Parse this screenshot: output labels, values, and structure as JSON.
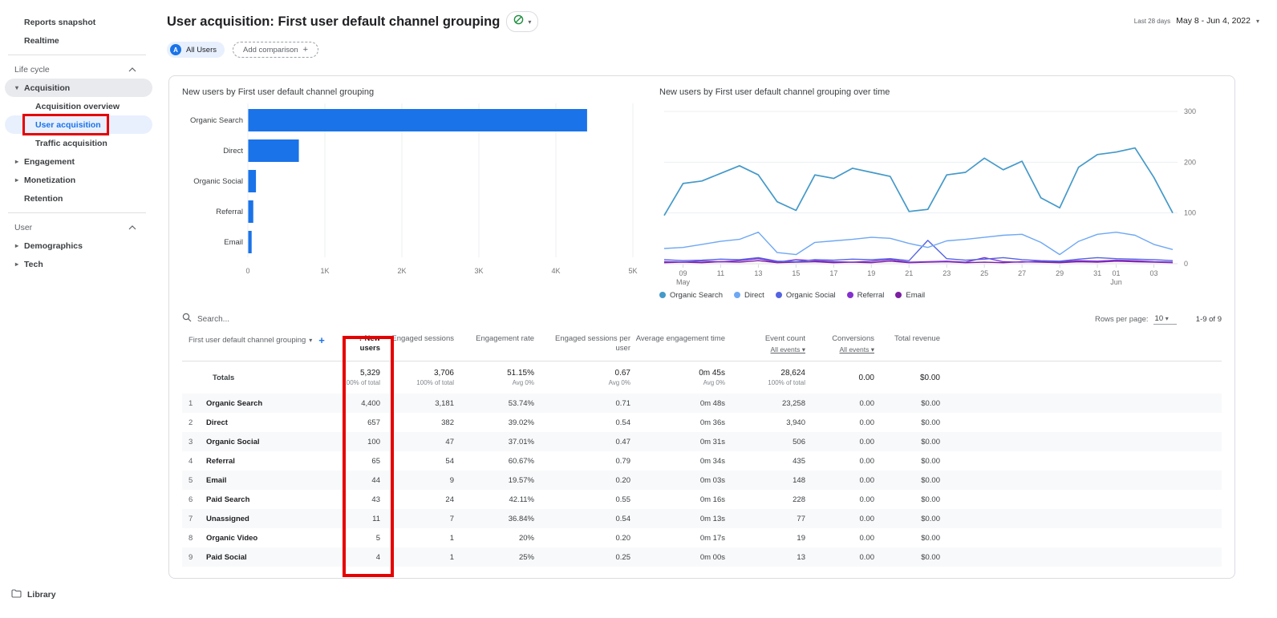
{
  "colors": {
    "accent_blue": "#1a73e8",
    "annotation_red": "#e60000",
    "selected_nav_bg": "#e8f0fe",
    "bar_color": "#1a73e8"
  },
  "sidebar": {
    "items": [
      {
        "label": "Reports snapshot",
        "type": "item"
      },
      {
        "label": "Realtime",
        "type": "item"
      },
      {
        "divider": true
      },
      {
        "label": "Life cycle",
        "type": "section",
        "chevron": "up"
      },
      {
        "label": "Acquisition",
        "type": "parent",
        "caret": "down",
        "active": true
      },
      {
        "label": "Acquisition overview",
        "type": "sub"
      },
      {
        "label": "User acquisition",
        "type": "sub",
        "selected": true
      },
      {
        "label": "Traffic acquisition",
        "type": "sub"
      },
      {
        "label": "Engagement",
        "type": "parent",
        "caret": "right"
      },
      {
        "label": "Monetization",
        "type": "parent",
        "caret": "right"
      },
      {
        "label": "Retention",
        "type": "parent"
      },
      {
        "divider": true
      },
      {
        "label": "User",
        "type": "section",
        "chevron": "up"
      },
      {
        "label": "Demographics",
        "type": "parent",
        "caret": "right"
      },
      {
        "label": "Tech",
        "type": "parent",
        "caret": "right"
      }
    ],
    "library_label": "Library"
  },
  "header": {
    "title": "User acquisition: First user default channel grouping",
    "date_range_type": "Last 28 days",
    "date_range": "May 8 - Jun 4, 2022"
  },
  "chips": {
    "all_users_label": "All Users",
    "all_users_avatar": "A",
    "add_comparison_label": "Add comparison"
  },
  "chart_data": [
    {
      "type": "bar",
      "orientation": "horizontal",
      "title": "New users by First user default channel grouping",
      "categories": [
        "Organic Search",
        "Direct",
        "Organic Social",
        "Referral",
        "Email"
      ],
      "values": [
        4400,
        657,
        100,
        65,
        44
      ],
      "xlim": [
        0,
        5000
      ],
      "xticks": [
        {
          "v": 0,
          "label": "0"
        },
        {
          "v": 1000,
          "label": "1K"
        },
        {
          "v": 2000,
          "label": "2K"
        },
        {
          "v": 3000,
          "label": "3K"
        },
        {
          "v": 4000,
          "label": "4K"
        },
        {
          "v": 5000,
          "label": "5K"
        }
      ],
      "bar_color": "#1a73e8",
      "grid": true,
      "xlabel": "",
      "ylabel": ""
    },
    {
      "type": "line",
      "title": "New users by First user default channel grouping over time",
      "x": [
        "May 8",
        "May 9",
        "May 10",
        "May 11",
        "May 12",
        "May 13",
        "May 14",
        "May 15",
        "May 16",
        "May 17",
        "May 18",
        "May 19",
        "May 20",
        "May 21",
        "May 22",
        "May 23",
        "May 24",
        "May 25",
        "May 26",
        "May 27",
        "May 28",
        "May 29",
        "May 30",
        "May 31",
        "Jun 1",
        "Jun 2",
        "Jun 3",
        "Jun 4"
      ],
      "xticks": [
        {
          "i": 1,
          "label": "09",
          "sub": "May"
        },
        {
          "i": 3,
          "label": "11"
        },
        {
          "i": 5,
          "label": "13"
        },
        {
          "i": 7,
          "label": "15"
        },
        {
          "i": 9,
          "label": "17"
        },
        {
          "i": 11,
          "label": "19"
        },
        {
          "i": 13,
          "label": "21"
        },
        {
          "i": 15,
          "label": "23"
        },
        {
          "i": 17,
          "label": "25"
        },
        {
          "i": 19,
          "label": "27"
        },
        {
          "i": 21,
          "label": "29"
        },
        {
          "i": 23,
          "label": "31"
        },
        {
          "i": 24,
          "label": "01",
          "sub": "Jun"
        },
        {
          "i": 26,
          "label": "03"
        }
      ],
      "ylim": [
        0,
        300
      ],
      "yticks": [
        0,
        100,
        200,
        300
      ],
      "grid": true,
      "legend_position": "bottom",
      "series": [
        {
          "name": "Organic Search",
          "color": "#4499c9",
          "values": [
            95,
            158,
            163,
            178,
            193,
            175,
            122,
            105,
            175,
            168,
            188,
            180,
            172,
            103,
            107,
            175,
            180,
            208,
            185,
            202,
            130,
            110,
            190,
            215,
            220,
            228,
            170,
            100
          ]
        },
        {
          "name": "Direct",
          "color": "#6ea8f4",
          "values": [
            30,
            32,
            38,
            44,
            48,
            62,
            22,
            18,
            42,
            45,
            48,
            52,
            50,
            40,
            32,
            45,
            48,
            52,
            56,
            58,
            42,
            18,
            44,
            58,
            62,
            56,
            38,
            28
          ]
        },
        {
          "name": "Organic Social",
          "color": "#5363e2",
          "values": [
            8,
            6,
            7,
            9,
            8,
            12,
            5,
            4,
            8,
            7,
            9,
            8,
            10,
            6,
            46,
            10,
            7,
            9,
            12,
            8,
            6,
            5,
            9,
            12,
            10,
            9,
            8,
            6
          ]
        },
        {
          "name": "Referral",
          "color": "#8430ce",
          "values": [
            4,
            3,
            5,
            4,
            6,
            10,
            3,
            8,
            6,
            4,
            3,
            5,
            8,
            3,
            4,
            5,
            3,
            12,
            4,
            3,
            5,
            4,
            6,
            5,
            7,
            6,
            4,
            3
          ]
        },
        {
          "name": "Email",
          "color": "#7c1fa2",
          "values": [
            2,
            3,
            2,
            4,
            3,
            6,
            2,
            3,
            4,
            2,
            3,
            2,
            5,
            2,
            3,
            4,
            2,
            3,
            2,
            4,
            3,
            2,
            4,
            3,
            5,
            4,
            3,
            2
          ]
        }
      ]
    }
  ],
  "table": {
    "search_placeholder": "Search...",
    "rows_per_page_label": "Rows per page:",
    "rows_per_page_value": "10",
    "range_label": "1-9 of 9",
    "sort_indicator": "↓",
    "columns": [
      {
        "label": "First user default channel grouping",
        "dimension": true
      },
      {
        "label": "New users",
        "sorted": true
      },
      {
        "label": "Engaged sessions"
      },
      {
        "label": "Engagement rate"
      },
      {
        "label": "Engaged sessions per user"
      },
      {
        "label": "Average engagement time"
      },
      {
        "label": "Event count",
        "sub": "All events"
      },
      {
        "label": "Conversions",
        "sub": "All events"
      },
      {
        "label": "Total revenue"
      }
    ],
    "totals": {
      "label": "Totals",
      "values": [
        "5,329",
        "3,706",
        "51.15%",
        "0.67",
        "0m 45s",
        "28,624",
        "0.00",
        "$0.00"
      ],
      "subs": [
        "100% of total",
        "100% of total",
        "Avg 0%",
        "Avg 0%",
        "Avg 0%",
        "100% of total",
        "",
        ""
      ]
    },
    "rows": [
      {
        "n": "1",
        "channel": "Organic Search",
        "values": [
          "4,400",
          "3,181",
          "53.74%",
          "0.71",
          "0m 48s",
          "23,258",
          "0.00",
          "$0.00"
        ]
      },
      {
        "n": "2",
        "channel": "Direct",
        "values": [
          "657",
          "382",
          "39.02%",
          "0.54",
          "0m 36s",
          "3,940",
          "0.00",
          "$0.00"
        ]
      },
      {
        "n": "3",
        "channel": "Organic Social",
        "values": [
          "100",
          "47",
          "37.01%",
          "0.47",
          "0m 31s",
          "506",
          "0.00",
          "$0.00"
        ]
      },
      {
        "n": "4",
        "channel": "Referral",
        "values": [
          "65",
          "54",
          "60.67%",
          "0.79",
          "0m 34s",
          "435",
          "0.00",
          "$0.00"
        ]
      },
      {
        "n": "5",
        "channel": "Email",
        "values": [
          "44",
          "9",
          "19.57%",
          "0.20",
          "0m 03s",
          "148",
          "0.00",
          "$0.00"
        ]
      },
      {
        "n": "6",
        "channel": "Paid Search",
        "values": [
          "43",
          "24",
          "42.11%",
          "0.55",
          "0m 16s",
          "228",
          "0.00",
          "$0.00"
        ]
      },
      {
        "n": "7",
        "channel": "Unassigned",
        "values": [
          "11",
          "7",
          "36.84%",
          "0.54",
          "0m 13s",
          "77",
          "0.00",
          "$0.00"
        ]
      },
      {
        "n": "8",
        "channel": "Organic Video",
        "values": [
          "5",
          "1",
          "20%",
          "0.20",
          "0m 17s",
          "19",
          "0.00",
          "$0.00"
        ]
      },
      {
        "n": "9",
        "channel": "Paid Social",
        "values": [
          "4",
          "1",
          "25%",
          "0.25",
          "0m 00s",
          "13",
          "0.00",
          "$0.00"
        ]
      }
    ]
  }
}
